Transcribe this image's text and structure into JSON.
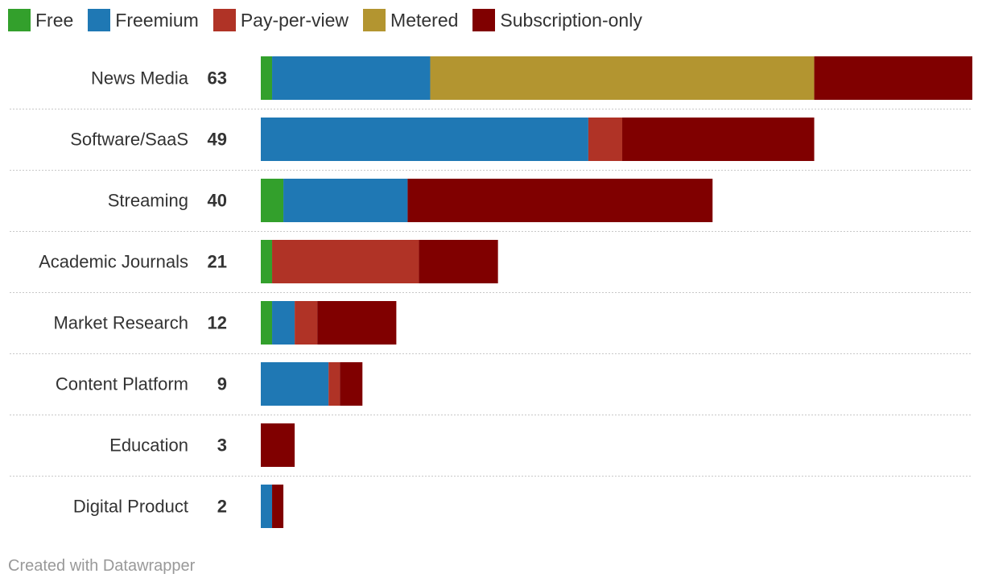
{
  "footer": "Created with Datawrapper",
  "chart_data": {
    "type": "bar",
    "orientation": "horizontal",
    "stacked": true,
    "title": "",
    "xlabel": "",
    "ylabel": "",
    "categories": [
      "News Media",
      "Software/SaaS",
      "Streaming",
      "Academic Journals",
      "Market Research",
      "Content Platform",
      "Education",
      "Digital Product"
    ],
    "totals": [
      "63",
      "49",
      "40",
      "21",
      "12",
      "9",
      "3",
      "2"
    ],
    "series": [
      {
        "name": "Free",
        "color": "#33a02c",
        "values": [
          1,
          0,
          2,
          1,
          1,
          0,
          0,
          0
        ]
      },
      {
        "name": "Freemium",
        "color": "#1f78b4",
        "values": [
          14,
          29,
          11,
          0,
          2,
          6,
          0,
          1
        ]
      },
      {
        "name": "Pay-per-view",
        "color": "#b03326",
        "values": [
          0,
          3,
          0,
          13,
          2,
          1,
          0,
          0
        ]
      },
      {
        "name": "Metered",
        "color": "#b39530",
        "values": [
          34,
          0,
          0,
          0,
          0,
          0,
          0,
          0
        ]
      },
      {
        "name": "Subscription-only",
        "color": "#800000",
        "values": [
          14,
          17,
          27,
          7,
          7,
          2,
          3,
          1
        ]
      }
    ],
    "xlim": [
      0,
      63
    ],
    "legend_position": "top-left",
    "grid": false
  }
}
